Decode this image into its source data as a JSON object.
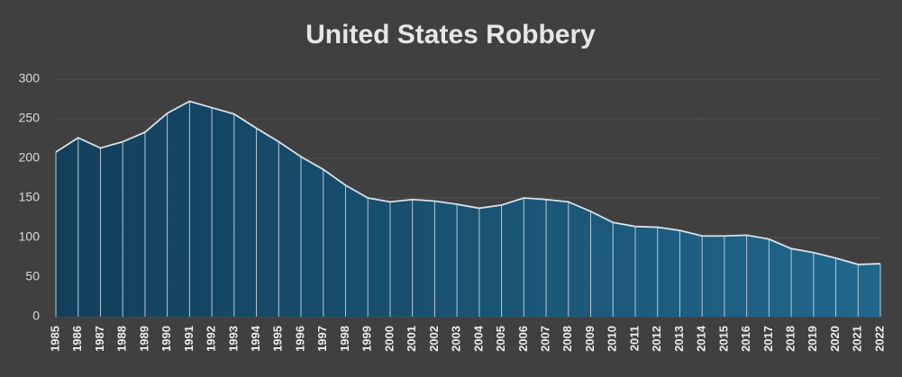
{
  "chart_data": {
    "type": "area",
    "title": "United States Robbery",
    "categories": [
      "1985",
      "1986",
      "1987",
      "1988",
      "1989",
      "1990",
      "1991",
      "1992",
      "1993",
      "1994",
      "1995",
      "1996",
      "1997",
      "1998",
      "1999",
      "2000",
      "2001",
      "2002",
      "2003",
      "2004",
      "2005",
      "2006",
      "2007",
      "2008",
      "2009",
      "2010",
      "2011",
      "2012",
      "2013",
      "2014",
      "2015",
      "2016",
      "2017",
      "2018",
      "2019",
      "2020",
      "2021",
      "2022"
    ],
    "values": [
      208,
      226,
      213,
      221,
      233,
      257,
      272,
      264,
      256,
      238,
      221,
      202,
      186,
      166,
      150,
      145,
      148,
      146,
      142,
      137,
      141,
      150,
      148,
      145,
      133,
      119,
      114,
      113,
      109,
      102,
      102,
      103,
      98,
      86,
      81,
      74,
      66,
      67
    ],
    "color": "#1d5a7e",
    "ylim": [
      0,
      300
    ],
    "yticks": [
      0,
      50,
      100,
      150,
      200,
      250,
      300
    ],
    "grid": true
  }
}
